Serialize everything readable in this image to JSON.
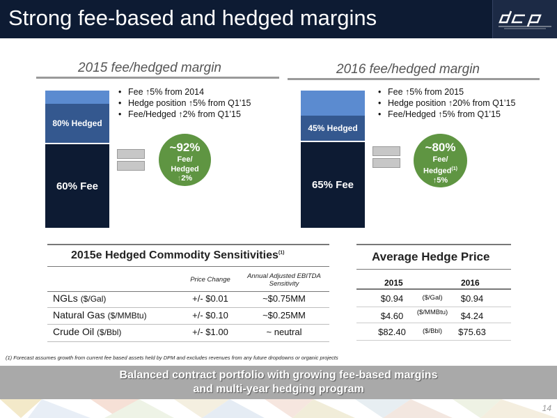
{
  "header": {
    "title": "Strong fee-based and hedged margins",
    "logo_icon": "dcp-midstream-logo"
  },
  "left": {
    "title": "2015 fee/hedged margin",
    "hedged_label": "80% Hedged",
    "fee_label": "60% Fee",
    "bullets": [
      {
        "pre": "Fee ",
        "arrow": "↑",
        "post": "5% from 2014"
      },
      {
        "pre": "Hedge position ",
        "arrow": "↑",
        "post": "5% from Q1’15"
      },
      {
        "pre": "Fee/Hedged ",
        "arrow": "↑",
        "post": "2% from Q1’15"
      }
    ],
    "circle": {
      "pct": "~92%",
      "line1": "Fee/",
      "line2": "Hedged",
      "sup": "",
      "arrow": "↑",
      "change": "2%"
    }
  },
  "right": {
    "title": "2016 fee/hedged margin",
    "hedged_label": "45% Hedged",
    "fee_label": "65% Fee",
    "bullets": [
      {
        "pre": "Fee ",
        "arrow": "↑",
        "post": "5% from 2015"
      },
      {
        "pre": "Hedge position ",
        "arrow": "↑",
        "post": "20% from Q1’15"
      },
      {
        "pre": "Fee/Hedged ",
        "arrow": "↑",
        "post": "5% from Q1’15"
      }
    ],
    "circle": {
      "pct": "~80%",
      "line1": "Fee/",
      "line2": "Hedged",
      "sup": "(1)",
      "arrow": "↑",
      "change": "5%"
    }
  },
  "sensitivities": {
    "title": "2015e Hedged Commodity Sensitivities",
    "title_sup": "(1)",
    "col_price": "Price Change",
    "col_ebitda_1": "Annual Adjusted EBITDA",
    "col_ebitda_2": "Sensitivity",
    "rows": [
      {
        "name": "NGLs",
        "unit": "($/Gal)",
        "price": "+/- $0.01",
        "ebitda": "~$0.75MM"
      },
      {
        "name": "Natural Gas",
        "unit": "($/MMBtu)",
        "price": "+/- $0.10",
        "ebitda": "~$0.25MM"
      },
      {
        "name": "Crude Oil",
        "unit": "($/Bbl)",
        "price": "+/- $1.00",
        "ebitda": "~ neutral"
      }
    ]
  },
  "hedge_price": {
    "title": "Average Hedge Price",
    "col_2015": "2015",
    "col_2016": "2016",
    "rows": [
      {
        "v2015": "$0.94",
        "unit": "($/Gal)",
        "v2016": "$0.94"
      },
      {
        "v2015": "$4.60",
        "unit": "($/MMBtu)",
        "v2016": "$4.24"
      },
      {
        "v2015": "$82.40",
        "unit": "($/Bbl)",
        "v2016": "$75.63"
      }
    ]
  },
  "footnote": "(1) Forecast assumes growth from current fee based assets held by DPM and excludes revenues from any future dropdowns or organic projects",
  "banner": {
    "line1": "Balanced contract portfolio with growing fee-based margins",
    "line2": "and multi-year hedging program"
  },
  "page_number": "14",
  "colors": {
    "navy": "#0d1b33",
    "mid_blue": "#34588f",
    "light_blue": "#5b8bd0",
    "green": "#5f9542",
    "banner_gray": "#a9a9a9"
  }
}
